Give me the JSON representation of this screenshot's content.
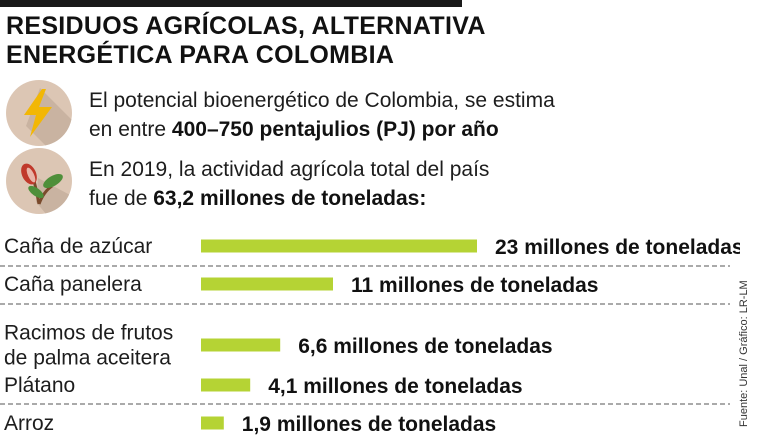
{
  "title_line1": "RESIDUOS AGRÍCOLAS, ALTERNATIVA",
  "title_line2": "ENERGÉTICA PARA COLOMBIA",
  "facts": [
    {
      "icon": "lightning-bolt-icon",
      "line1": "El potencial bioenergético de Colombia, se estima",
      "line2_prefix": "en entre ",
      "line2_bold": "400–750 pentajulios (PJ) por año"
    },
    {
      "icon": "sprout-plant-icon",
      "line1": "En 2019, la actividad agrícola total del país",
      "line2_prefix": "fue de ",
      "line2_bold": "63,2 millones de toneladas:"
    }
  ],
  "colors": {
    "bar": "#b5d334",
    "icon_background": "#dcc6b4",
    "bolt": "#f2b705",
    "text": "#1a1a1a"
  },
  "chart_data": {
    "type": "bar",
    "orientation": "horizontal",
    "unit": "millones de toneladas",
    "categories": [
      [
        "Caña de azúcar"
      ],
      [
        "Caña panelera"
      ],
      [
        "Racimos de frutos",
        "de palma aceitera"
      ],
      [
        "Plátano"
      ],
      [
        "Arroz"
      ]
    ],
    "values": [
      23,
      11,
      6.6,
      4.1,
      1.9
    ],
    "data_labels": [
      "23 millones de toneladas",
      "11 millones de toneladas",
      "6,6 millones de toneladas",
      "4,1 millones de toneladas",
      "1,9 millones de toneladas"
    ],
    "row_dividers": "dashed"
  },
  "source": "Fuente: Unal / Gráfico: LR-LM"
}
